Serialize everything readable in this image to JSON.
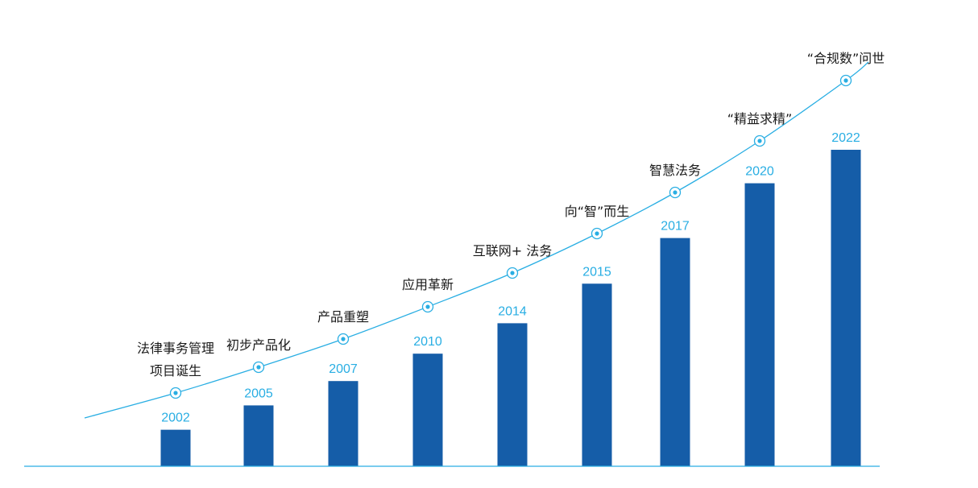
{
  "colors": {
    "bar": "#155da8",
    "year_label": "#29aee3",
    "curve": "#29aee3",
    "baseline": "#29aee3",
    "milestone_text": "#1a1a1a"
  },
  "chart_data": {
    "type": "bar",
    "categories": [
      "2002",
      "2005",
      "2007",
      "2010",
      "2014",
      "2015",
      "2017",
      "2020",
      "2022"
    ],
    "values": [
      1.2,
      2.0,
      2.8,
      3.7,
      4.7,
      6.0,
      7.5,
      9.3,
      10.4
    ],
    "ylim": [
      0,
      11
    ],
    "grid": false,
    "legend": "none",
    "title": "",
    "xlabel": "",
    "ylabel": "",
    "annotations": [
      {
        "category": "2002",
        "lines": [
          "法律事务管理",
          "项目诞生"
        ]
      },
      {
        "category": "2005",
        "lines": [
          "初步产品化"
        ]
      },
      {
        "category": "2007",
        "lines": [
          "产品重塑"
        ]
      },
      {
        "category": "2010",
        "lines": [
          "应用革新"
        ]
      },
      {
        "category": "2014",
        "lines": [
          "互联网+ 法务"
        ]
      },
      {
        "category": "2015",
        "lines": [
          "向“智”而生"
        ]
      },
      {
        "category": "2017",
        "lines": [
          "智慧法务"
        ]
      },
      {
        "category": "2020",
        "lines": [
          "“精益求精”"
        ]
      },
      {
        "category": "2022",
        "lines": [
          "“合规数”问世"
        ]
      }
    ]
  }
}
